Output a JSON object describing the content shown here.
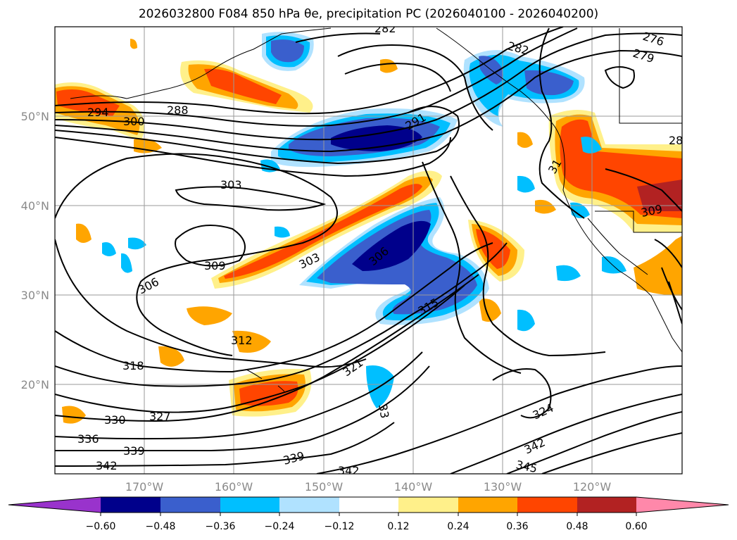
{
  "title": "2026032800 F084 850 hPa θe, precipitation PC (2026040100 - 2026040200)",
  "map": {
    "lat_labels": [
      "50°N",
      "40°N",
      "30°N",
      "20°N"
    ],
    "lon_labels": [
      "170°W",
      "160°W",
      "150°W",
      "140°W",
      "130°W",
      "120°W"
    ],
    "contour_labels": [
      "282",
      "276",
      "282",
      "279",
      "28",
      "294",
      "300",
      "288",
      "291",
      "303",
      "309",
      "306",
      "303",
      "309",
      "306",
      "315",
      "31",
      "312",
      "318",
      "321",
      "327",
      "330",
      "336",
      "339",
      "342",
      "339",
      "342",
      "324",
      "342",
      "345",
      "33"
    ]
  },
  "colorbar": {
    "ticks": [
      "−0.60",
      "−0.48",
      "−0.36",
      "−0.24",
      "−0.12",
      "0.12",
      "0.24",
      "0.36",
      "0.48",
      "0.60"
    ],
    "colors": [
      "#9933cc",
      "#00008b",
      "#3a5fcd",
      "#00bfff",
      "#b0e2ff",
      "#ffffff",
      "#fff08a",
      "#ffa500",
      "#ff4500",
      "#b22222",
      "#ff88aa"
    ]
  }
}
